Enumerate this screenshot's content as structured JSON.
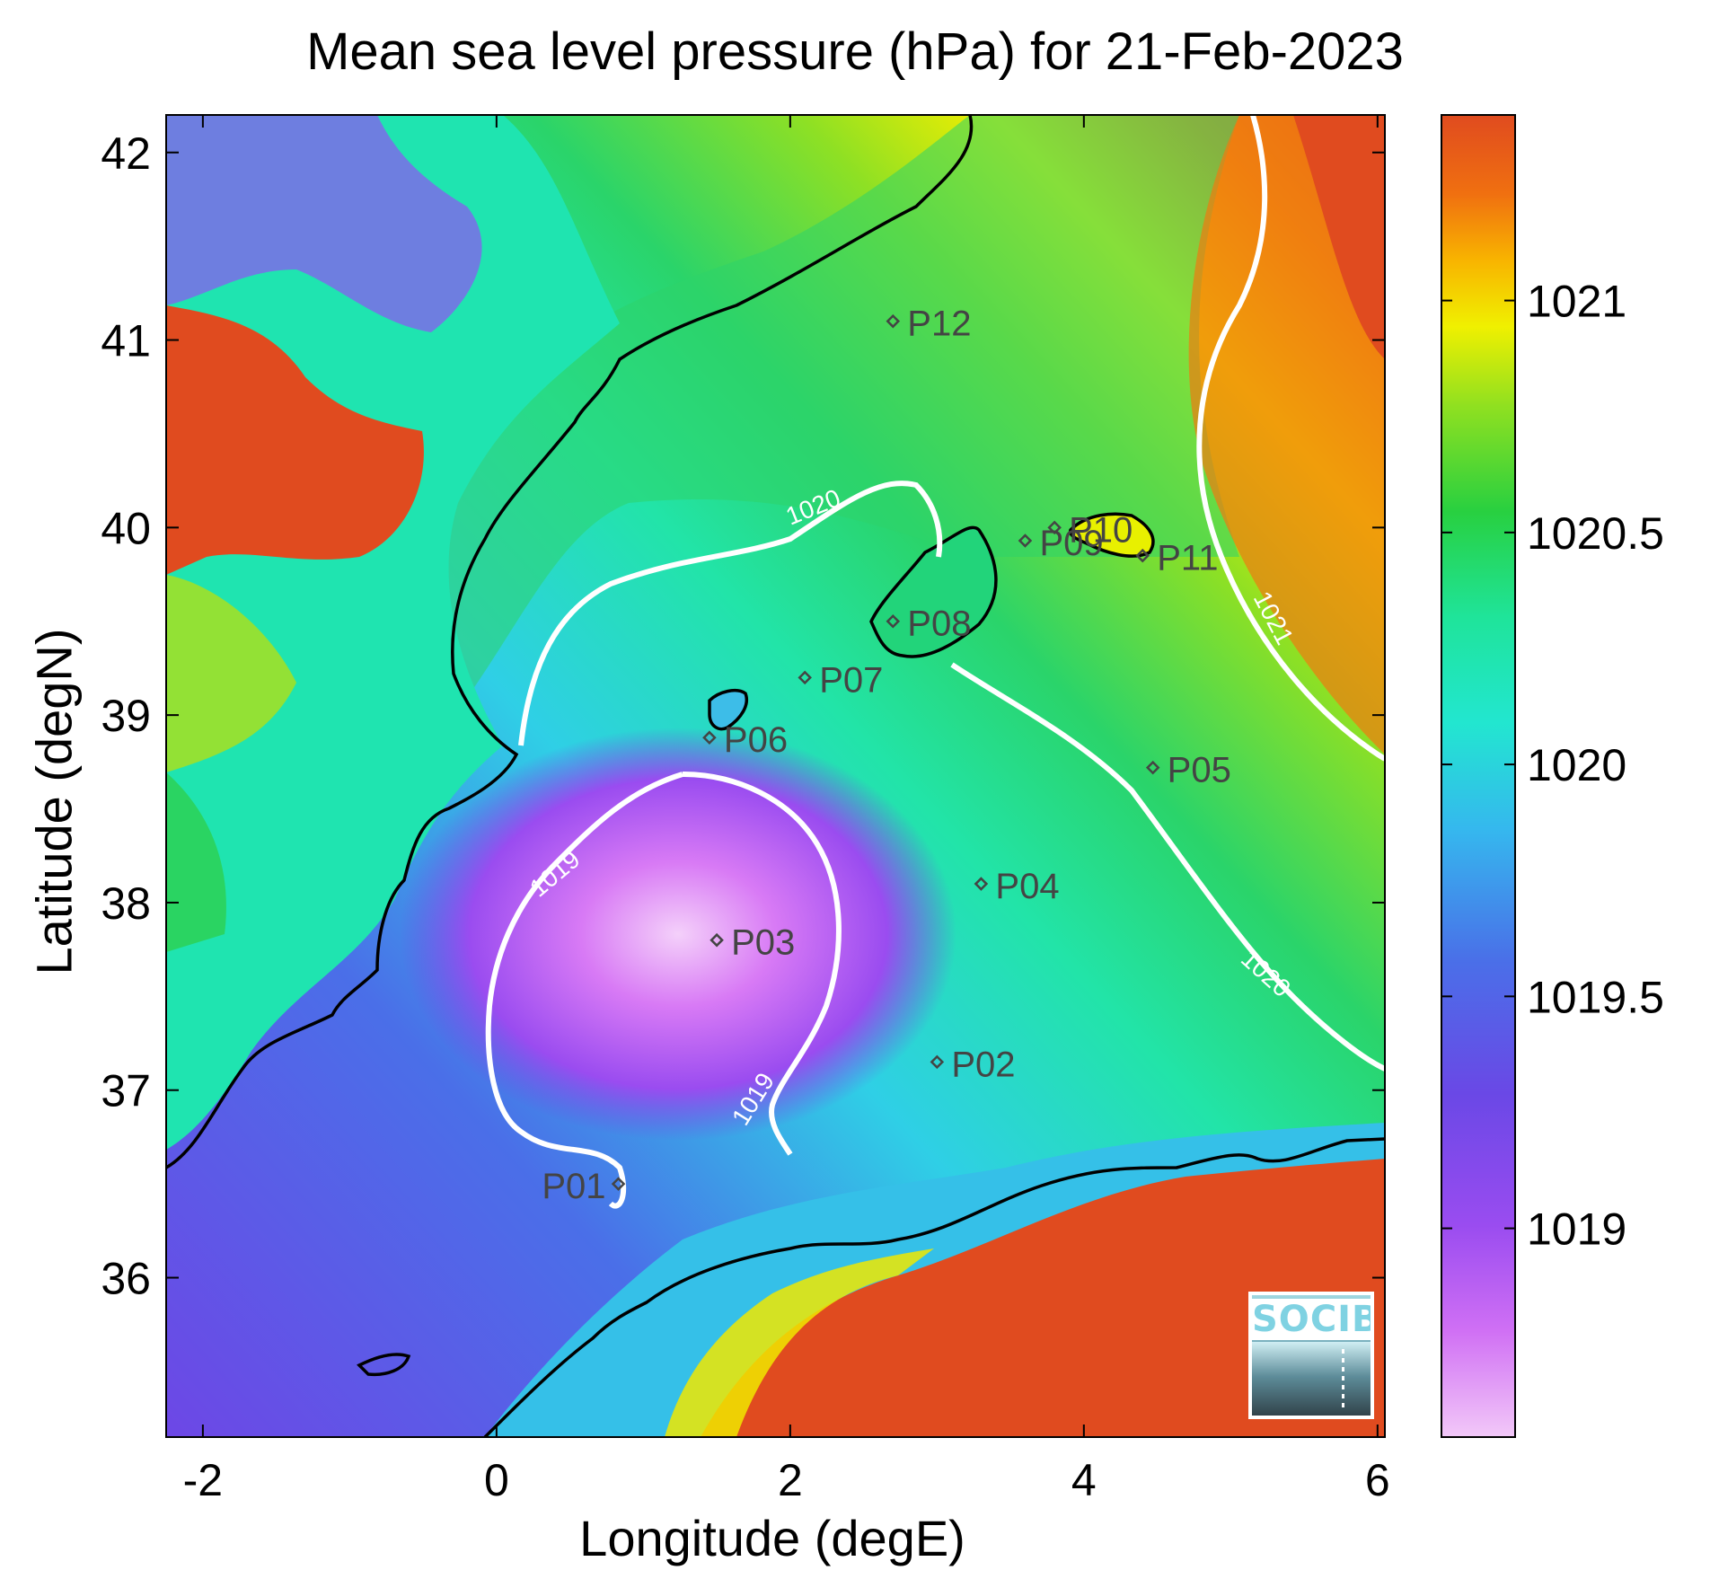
{
  "title": "Mean sea level pressure (hPa) for 21-Feb-2023",
  "x_axis": {
    "label": "Longitude (degE)",
    "ticks": [
      "-2",
      "0",
      "2",
      "4",
      "6"
    ]
  },
  "y_axis": {
    "label": "Latitude (degN)",
    "ticks": [
      "36",
      "37",
      "38",
      "39",
      "40",
      "41",
      "42"
    ]
  },
  "colorbar": {
    "ticks": [
      "1019",
      "1019.5",
      "1020",
      "1020.5",
      "1021"
    ],
    "colors": [
      "#f2c8f8",
      "#c24bf0",
      "#7a3ee8",
      "#4a63e6",
      "#35b8ee",
      "#22e6d0",
      "#1fe49a",
      "#28d040",
      "#90e020",
      "#f0f000",
      "#f8b400",
      "#f07010",
      "#e04b1f"
    ]
  },
  "contour_labels": [
    "1019",
    "1019",
    "1020",
    "1020",
    "1021"
  ],
  "stations": [
    {
      "label": "P01",
      "lon": 0.83,
      "lat": 36.5
    },
    {
      "label": "P02",
      "lon": 3.0,
      "lat": 37.15
    },
    {
      "label": "P03",
      "lon": 1.5,
      "lat": 37.8
    },
    {
      "label": "P04",
      "lon": 3.3,
      "lat": 38.1
    },
    {
      "label": "P05",
      "lon": 4.47,
      "lat": 38.72
    },
    {
      "label": "P06",
      "lon": 1.45,
      "lat": 38.88
    },
    {
      "label": "P07",
      "lon": 2.1,
      "lat": 39.2
    },
    {
      "label": "P08",
      "lon": 2.7,
      "lat": 39.5
    },
    {
      "label": "P09",
      "lon": 3.6,
      "lat": 39.93
    },
    {
      "label": "P10",
      "lon": 3.8,
      "lat": 40.0
    },
    {
      "label": "P11",
      "lon": 4.4,
      "lat": 39.85
    },
    {
      "label": "P12",
      "lon": 2.7,
      "lat": 41.1
    }
  ],
  "logo_text": "SOCIB"
}
